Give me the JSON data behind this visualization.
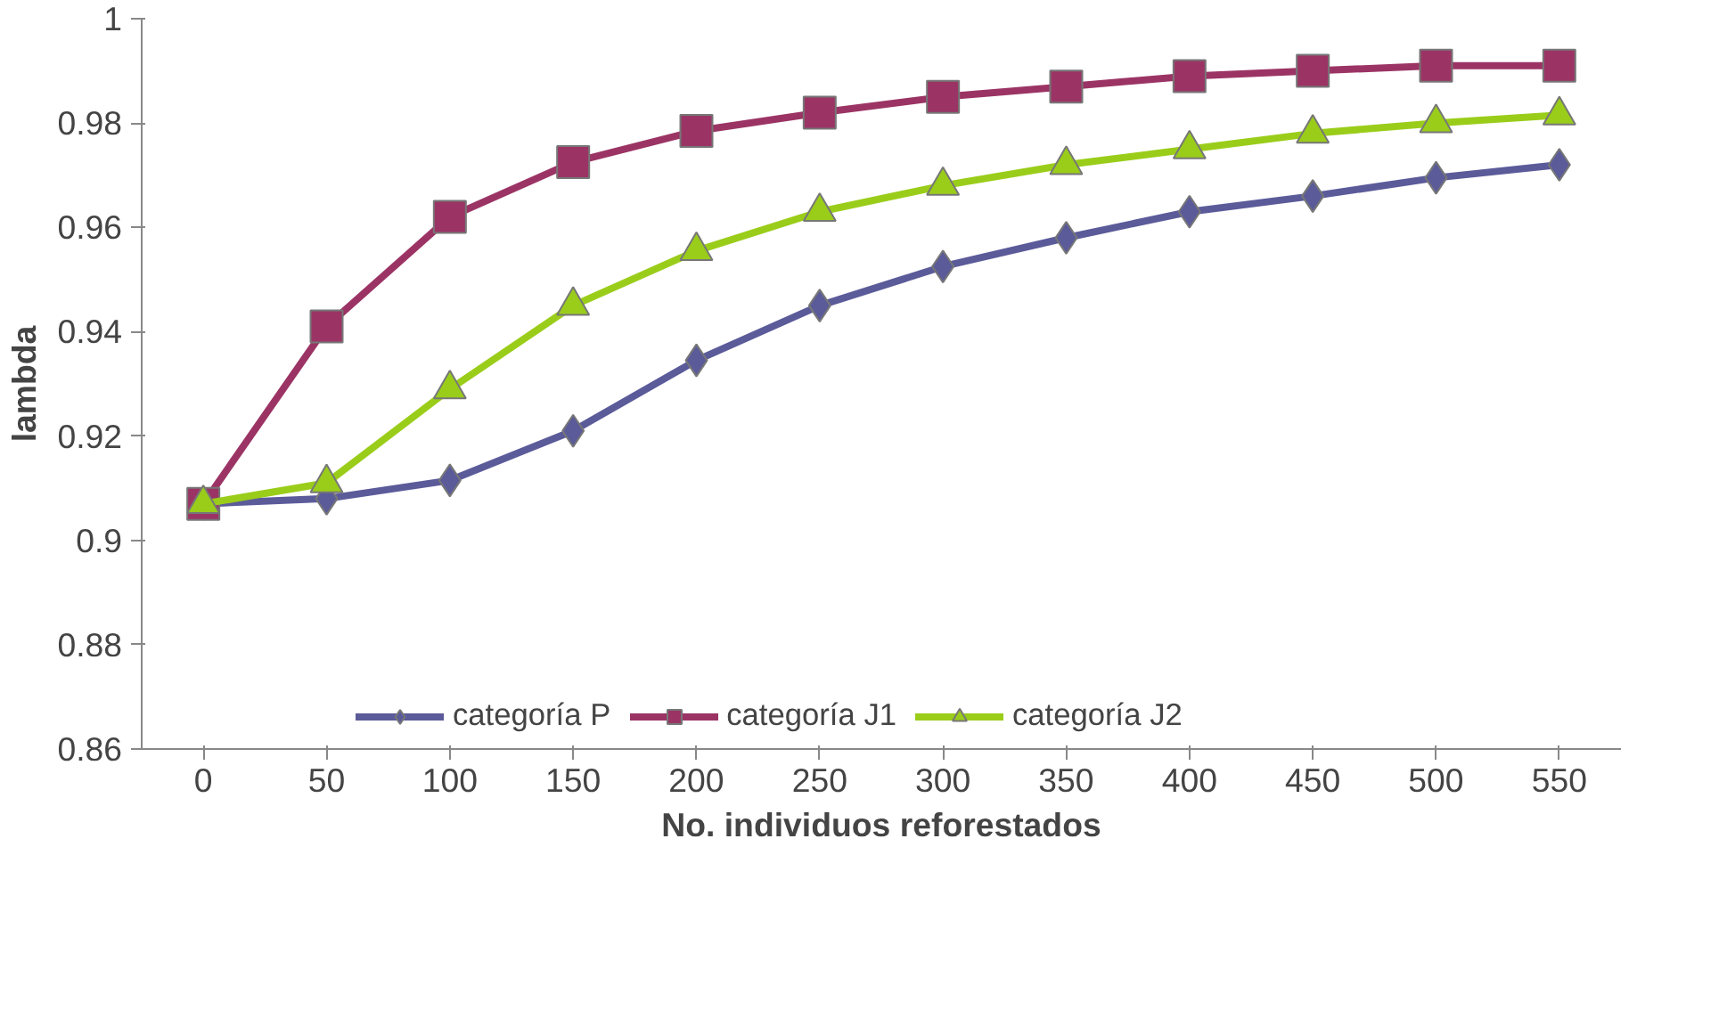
{
  "chart_data": {
    "type": "line",
    "xlabel": "No. individuos reforestados",
    "ylabel": "lambda",
    "categories": [
      "0",
      "50",
      "100",
      "150",
      "200",
      "250",
      "300",
      "350",
      "400",
      "450",
      "500",
      "550"
    ],
    "series": [
      {
        "name": "categoría P",
        "color": "#5b5b9a",
        "marker": "diamond",
        "values": [
          0.907,
          0.908,
          0.9115,
          0.921,
          0.9345,
          0.945,
          0.9525,
          0.958,
          0.963,
          0.966,
          0.9695,
          0.972
        ]
      },
      {
        "name": "categoría J1",
        "color": "#9b3465",
        "marker": "square",
        "values": [
          0.907,
          0.941,
          0.962,
          0.9725,
          0.9785,
          0.982,
          0.985,
          0.987,
          0.989,
          0.99,
          0.991,
          0.991
        ]
      },
      {
        "name": "categoría J2",
        "color": "#9acd1a",
        "marker": "triangle",
        "values": [
          0.907,
          0.911,
          0.929,
          0.945,
          0.9555,
          0.963,
          0.968,
          0.972,
          0.975,
          0.978,
          0.98,
          0.9815
        ]
      }
    ],
    "ylim": [
      0.86,
      1
    ],
    "yticks": [
      0.86,
      0.88,
      0.9,
      0.92,
      0.94,
      0.96,
      0.98,
      1
    ],
    "grid": false,
    "legend": "bottom",
    "line_style": "solid"
  }
}
